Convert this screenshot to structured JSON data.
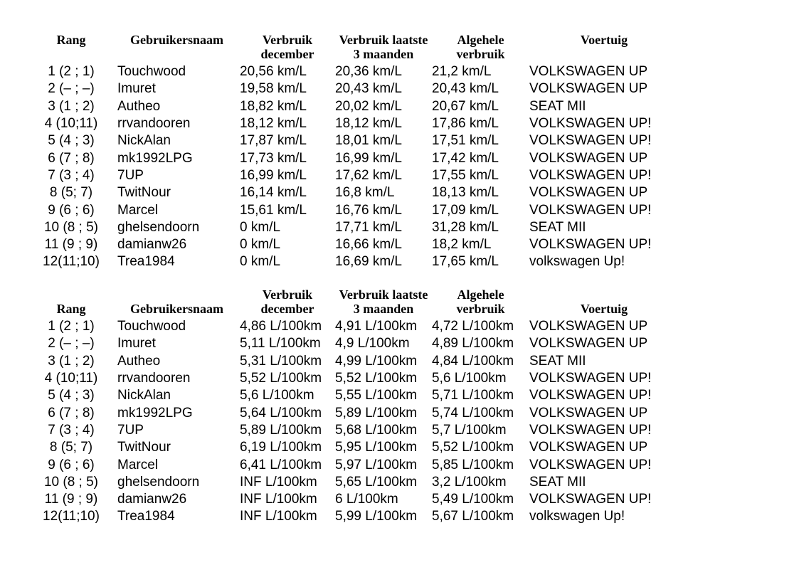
{
  "document": {
    "background_color": "#ffffff",
    "text_color": "#000000"
  },
  "tables": [
    {
      "name": "ranking-km-per-liter",
      "unit": "km/L",
      "columns": [
        {
          "id": "rank",
          "line1": "Rang",
          "line2": ""
        },
        {
          "id": "user",
          "line1": "Gebruikersnaam",
          "line2": ""
        },
        {
          "id": "dec",
          "line1": "Verbruik",
          "line2": "december"
        },
        {
          "id": "m3",
          "line1": "Verbruik laatste",
          "line2": "3 maanden"
        },
        {
          "id": "all",
          "line1": "Algehele",
          "line2": "verbruik"
        },
        {
          "id": "veh",
          "line1": "Voertuig",
          "line2": ""
        }
      ],
      "rows": [
        [
          "1 (2 ; 1)",
          "Touchwood",
          "20,56 km/L",
          "20,36 km/L",
          "21,2 km/L",
          "VOLKSWAGEN UP"
        ],
        [
          "2 (– ; –)",
          "Imuret",
          "19,58 km/L",
          "20,43 km/L",
          "20,43 km/L",
          "VOLKSWAGEN UP"
        ],
        [
          "3 (1 ; 2)",
          "Autheo",
          "18,82 km/L",
          "20,02 km/L",
          "20,67 km/L",
          "SEAT MII"
        ],
        [
          "4 (10;11)",
          "rrvandooren",
          "18,12 km/L",
          "18,12 km/L",
          "17,86 km/L",
          "VOLKSWAGEN UP!"
        ],
        [
          "5 (4 ; 3)",
          "NickAlan",
          "17,87 km/L",
          "18,01 km/L",
          "17,51 km/L",
          "VOLKSWAGEN UP!"
        ],
        [
          "6 (7 ; 8)",
          "mk1992LPG",
          "17,73 km/L",
          "16,99 km/L",
          "17,42 km/L",
          "VOLKSWAGEN UP"
        ],
        [
          "7 (3 ; 4)",
          "7UP",
          "16,99 km/L",
          "17,62 km/L",
          "17,55 km/L",
          "VOLKSWAGEN UP!"
        ],
        [
          "8 (5; 7)",
          "TwitNour",
          "16,14 km/L",
          "16,8 km/L",
          "18,13 km/L",
          "VOLKSWAGEN UP"
        ],
        [
          "9 (6 ; 6)",
          "Marcel",
          "15,61 km/L",
          "16,76 km/L",
          "17,09 km/L",
          "VOLKSWAGEN UP!"
        ],
        [
          "10 (8 ; 5)",
          "ghelsendoorn",
          "0 km/L",
          "17,71 km/L",
          "31,28 km/L",
          "SEAT MII"
        ],
        [
          "11 (9 ; 9)",
          "damianw26",
          "0 km/L",
          "16,66 km/L",
          "18,2 km/L",
          "VOLKSWAGEN UP!"
        ],
        [
          "12(11;10)",
          "Trea1984",
          "0 km/L",
          "16,69 km/L",
          "17,65 km/L",
          "volkswagen Up!"
        ]
      ]
    },
    {
      "name": "ranking-liter-per-100km",
      "unit": "L/100km",
      "columns": [
        {
          "id": "rank",
          "line1": "",
          "line2": "Rang"
        },
        {
          "id": "user",
          "line1": "",
          "line2": "Gebruikersnaam"
        },
        {
          "id": "dec",
          "line1": "Verbruik",
          "line2": "december"
        },
        {
          "id": "m3",
          "line1": "Verbruik laatste",
          "line2": "3 maanden"
        },
        {
          "id": "all",
          "line1": "Algehele",
          "line2": "verbruik"
        },
        {
          "id": "veh",
          "line1": "",
          "line2": "Voertuig"
        }
      ],
      "rows": [
        [
          "1 (2 ; 1)",
          "Touchwood",
          "4,86 L/100km",
          "4,91 L/100km",
          "4,72 L/100km",
          "VOLKSWAGEN UP"
        ],
        [
          "2 (– ; –)",
          "Imuret",
          "5,11 L/100km",
          "4,9 L/100km",
          "4,89 L/100km",
          "VOLKSWAGEN UP"
        ],
        [
          "3 (1 ; 2)",
          "Autheo",
          "5,31 L/100km",
          "4,99 L/100km",
          "4,84 L/100km",
          "SEAT MII"
        ],
        [
          "4 (10;11)",
          "rrvandooren",
          "5,52 L/100km",
          "5,52 L/100km",
          "5,6 L/100km",
          "VOLKSWAGEN UP!"
        ],
        [
          "5 (4 ; 3)",
          "NickAlan",
          "5,6 L/100km",
          "5,55 L/100km",
          "5,71 L/100km",
          "VOLKSWAGEN UP!"
        ],
        [
          "6 (7 ; 8)",
          "mk1992LPG",
          "5,64 L/100km",
          "5,89 L/100km",
          "5,74 L/100km",
          "VOLKSWAGEN UP"
        ],
        [
          "7 (3 ; 4)",
          "7UP",
          "5,89 L/100km",
          "5,68 L/100km",
          "5,7 L/100km",
          "VOLKSWAGEN UP!"
        ],
        [
          "8 (5; 7)",
          "TwitNour",
          "6,19 L/100km",
          "5,95 L/100km",
          "5,52 L/100km",
          "VOLKSWAGEN UP"
        ],
        [
          "9 (6 ; 6)",
          "Marcel",
          "6,41 L/100km",
          "5,97 L/100km",
          "5,85 L/100km",
          "VOLKSWAGEN UP!"
        ],
        [
          "10 (8 ; 5)",
          "ghelsendoorn",
          "INF L/100km",
          "5,65 L/100km",
          "3,2 L/100km",
          "SEAT MII"
        ],
        [
          "11 (9 ; 9)",
          "damianw26",
          "INF L/100km",
          "6 L/100km",
          "5,49 L/100km",
          "VOLKSWAGEN UP!"
        ],
        [
          "12(11;10)",
          "Trea1984",
          "INF L/100km",
          "5,99 L/100km",
          "5,67 L/100km",
          "volkswagen Up!"
        ]
      ]
    }
  ]
}
